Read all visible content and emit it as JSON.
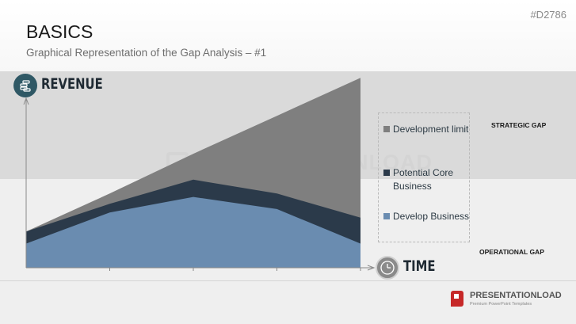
{
  "slide": {
    "id": "#D2786",
    "title": "BASICS",
    "subtitle": "Graphical Representation of the Gap Analysis – #1",
    "watermark": "PRESENTATIONLOAD"
  },
  "axes": {
    "y_label": "REVENUE",
    "x_label": "TIME",
    "y_icon": "coins-icon",
    "x_icon": "clock-icon"
  },
  "gaps": {
    "strategic": "STRATEGIC GAP",
    "operational": "OPERATIONAL GAP"
  },
  "logo": {
    "name": "PRESENTATIONLOAD",
    "tagline": "Premium PowerPoint Templates"
  },
  "chart_data": {
    "type": "area",
    "title": "",
    "xlabel": "TIME",
    "ylabel": "REVENUE",
    "x": [
      0,
      1,
      2,
      3,
      4
    ],
    "ylim": [
      0,
      100
    ],
    "grid": false,
    "legend_placement": "right",
    "series": [
      {
        "name": "Development limit",
        "color": "#7f7f7f",
        "values": [
          21,
          43,
          66,
          88,
          110
        ]
      },
      {
        "name": "Potential Core Business",
        "color": "#2b3a4a",
        "values": [
          21,
          37,
          51,
          43,
          29
        ]
      },
      {
        "name": "Develop Business",
        "color": "#6a8cb0",
        "values": [
          14,
          32,
          41,
          34,
          14
        ]
      }
    ]
  }
}
